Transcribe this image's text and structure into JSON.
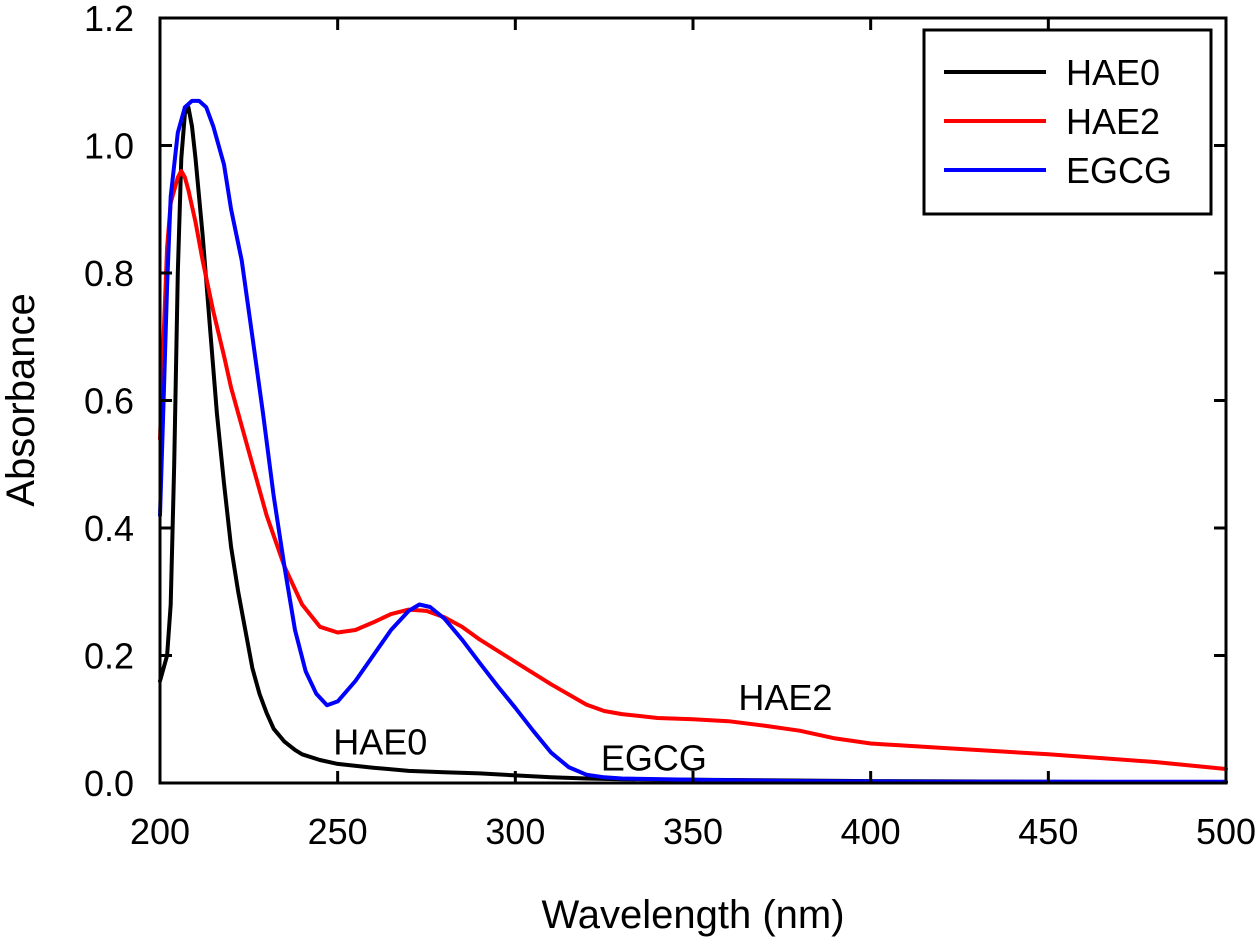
{
  "chart_data": {
    "type": "line",
    "xlabel": "Wavelength (nm)",
    "ylabel": "Absorbance",
    "xlim": [
      200,
      500
    ],
    "ylim": [
      0,
      1.2
    ],
    "x_ticks": [
      200,
      250,
      300,
      350,
      400,
      450,
      500
    ],
    "x_tick_labels": [
      "200",
      "250",
      "300",
      "350",
      "400",
      "450",
      "500"
    ],
    "y_ticks": [
      0,
      0.2,
      0.4,
      0.6,
      0.8,
      1.0,
      1.2
    ],
    "y_tick_labels": [
      "0.0",
      "0.2",
      "0.4",
      "0.6",
      "0.8",
      "1.0",
      "1.2"
    ],
    "grid": false,
    "legend": "top-right",
    "series": [
      {
        "name": "HAE0",
        "color": "#000000",
        "points": [
          [
            200,
            0.16
          ],
          [
            202,
            0.2
          ],
          [
            203,
            0.28
          ],
          [
            204,
            0.5
          ],
          [
            205,
            0.8
          ],
          [
            206,
            0.98
          ],
          [
            207,
            1.05
          ],
          [
            208,
            1.06
          ],
          [
            209,
            1.03
          ],
          [
            210,
            0.98
          ],
          [
            212,
            0.86
          ],
          [
            214,
            0.72
          ],
          [
            216,
            0.58
          ],
          [
            218,
            0.47
          ],
          [
            220,
            0.37
          ],
          [
            222,
            0.3
          ],
          [
            224,
            0.24
          ],
          [
            226,
            0.18
          ],
          [
            228,
            0.14
          ],
          [
            230,
            0.11
          ],
          [
            232,
            0.085
          ],
          [
            235,
            0.065
          ],
          [
            238,
            0.052
          ],
          [
            240,
            0.045
          ],
          [
            245,
            0.036
          ],
          [
            250,
            0.03
          ],
          [
            260,
            0.024
          ],
          [
            270,
            0.019
          ],
          [
            280,
            0.017
          ],
          [
            290,
            0.015
          ],
          [
            300,
            0.012
          ],
          [
            310,
            0.009
          ],
          [
            320,
            0.007
          ],
          [
            330,
            0.006
          ],
          [
            350,
            0.005
          ],
          [
            400,
            0.003
          ],
          [
            450,
            0.002
          ],
          [
            500,
            0.001
          ]
        ]
      },
      {
        "name": "HAE2",
        "color": "#ff0000",
        "points": [
          [
            200,
            0.54
          ],
          [
            201,
            0.7
          ],
          [
            202,
            0.84
          ],
          [
            203,
            0.91
          ],
          [
            205,
            0.95
          ],
          [
            206,
            0.96
          ],
          [
            207,
            0.95
          ],
          [
            208,
            0.93
          ],
          [
            210,
            0.88
          ],
          [
            212,
            0.82
          ],
          [
            215,
            0.74
          ],
          [
            218,
            0.67
          ],
          [
            220,
            0.62
          ],
          [
            225,
            0.52
          ],
          [
            230,
            0.42
          ],
          [
            235,
            0.34
          ],
          [
            240,
            0.28
          ],
          [
            245,
            0.245
          ],
          [
            250,
            0.236
          ],
          [
            255,
            0.24
          ],
          [
            260,
            0.252
          ],
          [
            265,
            0.265
          ],
          [
            270,
            0.272
          ],
          [
            275,
            0.27
          ],
          [
            280,
            0.26
          ],
          [
            285,
            0.245
          ],
          [
            290,
            0.225
          ],
          [
            300,
            0.19
          ],
          [
            310,
            0.155
          ],
          [
            320,
            0.123
          ],
          [
            325,
            0.113
          ],
          [
            330,
            0.108
          ],
          [
            340,
            0.102
          ],
          [
            350,
            0.1
          ],
          [
            360,
            0.097
          ],
          [
            370,
            0.09
          ],
          [
            380,
            0.082
          ],
          [
            390,
            0.07
          ],
          [
            400,
            0.062
          ],
          [
            420,
            0.055
          ],
          [
            450,
            0.045
          ],
          [
            480,
            0.033
          ],
          [
            500,
            0.022
          ]
        ]
      },
      {
        "name": "EGCG",
        "color": "#0000ff",
        "points": [
          [
            200,
            0.42
          ],
          [
            201,
            0.6
          ],
          [
            202,
            0.78
          ],
          [
            203,
            0.92
          ],
          [
            205,
            1.02
          ],
          [
            207,
            1.06
          ],
          [
            209,
            1.07
          ],
          [
            211,
            1.07
          ],
          [
            213,
            1.06
          ],
          [
            215,
            1.03
          ],
          [
            218,
            0.97
          ],
          [
            220,
            0.9
          ],
          [
            223,
            0.82
          ],
          [
            226,
            0.7
          ],
          [
            229,
            0.58
          ],
          [
            232,
            0.45
          ],
          [
            235,
            0.34
          ],
          [
            238,
            0.24
          ],
          [
            241,
            0.175
          ],
          [
            244,
            0.14
          ],
          [
            247,
            0.122
          ],
          [
            250,
            0.128
          ],
          [
            255,
            0.16
          ],
          [
            260,
            0.2
          ],
          [
            265,
            0.24
          ],
          [
            270,
            0.27
          ],
          [
            273,
            0.28
          ],
          [
            276,
            0.276
          ],
          [
            280,
            0.258
          ],
          [
            285,
            0.225
          ],
          [
            290,
            0.188
          ],
          [
            295,
            0.152
          ],
          [
            300,
            0.118
          ],
          [
            305,
            0.082
          ],
          [
            310,
            0.048
          ],
          [
            315,
            0.025
          ],
          [
            320,
            0.013
          ],
          [
            325,
            0.009
          ],
          [
            330,
            0.007
          ],
          [
            350,
            0.005
          ],
          [
            380,
            0.003
          ],
          [
            420,
            0.002
          ],
          [
            460,
            0.002
          ],
          [
            500,
            0.002
          ]
        ]
      }
    ],
    "annotations": [
      {
        "text": "HAE0",
        "x": 262,
        "y": 0.065
      },
      {
        "text": "EGCG",
        "x": 339,
        "y": 0.04
      },
      {
        "text": "HAE2",
        "x": 376,
        "y": 0.135
      }
    ]
  }
}
